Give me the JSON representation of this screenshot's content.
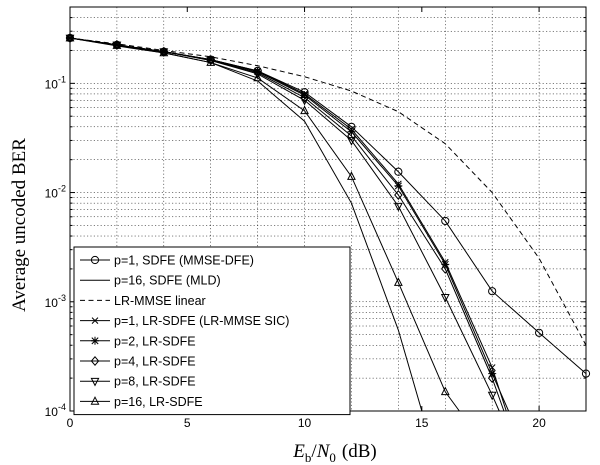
{
  "chart_data": {
    "type": "line",
    "xlabel": "E_b/N_0 (dB)",
    "xlabel_parts": {
      "e": "E",
      "b": "b",
      "n": "N",
      "zero": "0",
      "unit": "(dB)"
    },
    "ylabel": "Average uncoded BER",
    "xlim": [
      0,
      22
    ],
    "ylim": [
      0.0001,
      0.5
    ],
    "yscale": "log",
    "grid": true,
    "legend_position": "bottom-left",
    "x_ticks": [
      0,
      5,
      10,
      15,
      20
    ],
    "x_tick_labels": [
      "0",
      "5",
      "10",
      "15",
      "20"
    ],
    "y_ticks": [
      0.0001,
      0.001,
      0.01,
      0.1
    ],
    "y_tick_labels": [
      {
        "base": "10",
        "exp": "-4"
      },
      {
        "base": "10",
        "exp": "-3"
      },
      {
        "base": "10",
        "exp": "-2"
      },
      {
        "base": "10",
        "exp": "-1"
      }
    ],
    "series": [
      {
        "name": "p=1, SDFE (MMSE-DFE)",
        "marker": "circle",
        "dash": "solid",
        "x": [
          0,
          2,
          4,
          6,
          8,
          10,
          12,
          14,
          16,
          18,
          20,
          22
        ],
        "y": [
          0.26,
          0.225,
          0.195,
          0.165,
          0.13,
          0.083,
          0.04,
          0.0155,
          0.0055,
          0.00125,
          0.00052,
          0.00022
        ]
      },
      {
        "name": "p=16, SDFE (MLD)",
        "marker": "none",
        "dash": "solid",
        "x": [
          0,
          2,
          4,
          6,
          8,
          10,
          12,
          14,
          15
        ],
        "y": [
          0.26,
          0.22,
          0.19,
          0.155,
          0.105,
          0.045,
          0.008,
          0.00055,
          0.0001
        ]
      },
      {
        "name": "LR-MMSE linear",
        "marker": "none",
        "dash": "dashed",
        "x": [
          0,
          2,
          4,
          6,
          8,
          10,
          12,
          14,
          16,
          18,
          20,
          22
        ],
        "y": [
          0.26,
          0.23,
          0.2,
          0.175,
          0.145,
          0.115,
          0.085,
          0.055,
          0.028,
          0.01,
          0.0025,
          0.0004
        ]
      },
      {
        "name": "p=1, LR-SDFE (LR-MMSE SIC)",
        "marker": "x",
        "dash": "solid",
        "x": [
          0,
          2,
          4,
          6,
          8,
          10,
          12,
          14,
          16,
          18,
          18.6
        ],
        "y": [
          0.26,
          0.225,
          0.195,
          0.165,
          0.13,
          0.08,
          0.038,
          0.012,
          0.0023,
          0.00025,
          0.0001
        ]
      },
      {
        "name": "p=2, LR-SDFE",
        "marker": "star",
        "dash": "solid",
        "x": [
          0,
          2,
          4,
          6,
          8,
          10,
          12,
          14,
          16,
          18,
          18.7
        ],
        "y": [
          0.26,
          0.225,
          0.195,
          0.165,
          0.128,
          0.078,
          0.036,
          0.0115,
          0.0022,
          0.00022,
          0.0001
        ]
      },
      {
        "name": "p=4, LR-SDFE",
        "marker": "diamond",
        "dash": "solid",
        "x": [
          0,
          2,
          4,
          6,
          8,
          10,
          12,
          14,
          16,
          18,
          18.5
        ],
        "y": [
          0.26,
          0.225,
          0.195,
          0.163,
          0.125,
          0.074,
          0.033,
          0.0095,
          0.002,
          0.0002,
          0.0001
        ]
      },
      {
        "name": "p=8, LR-SDFE",
        "marker": "triangle-down",
        "dash": "solid",
        "x": [
          0,
          2,
          4,
          6,
          8,
          10,
          12,
          14,
          16,
          18,
          18.3
        ],
        "y": [
          0.26,
          0.225,
          0.195,
          0.162,
          0.122,
          0.07,
          0.03,
          0.0075,
          0.0011,
          0.00014,
          0.0001
        ]
      },
      {
        "name": "p=16, LR-SDFE",
        "marker": "triangle-up",
        "dash": "solid",
        "x": [
          0,
          2,
          4,
          6,
          8,
          10,
          12,
          14,
          16,
          16.6
        ],
        "y": [
          0.26,
          0.222,
          0.19,
          0.155,
          0.112,
          0.056,
          0.014,
          0.0015,
          0.00015,
          0.0001
        ]
      }
    ]
  }
}
